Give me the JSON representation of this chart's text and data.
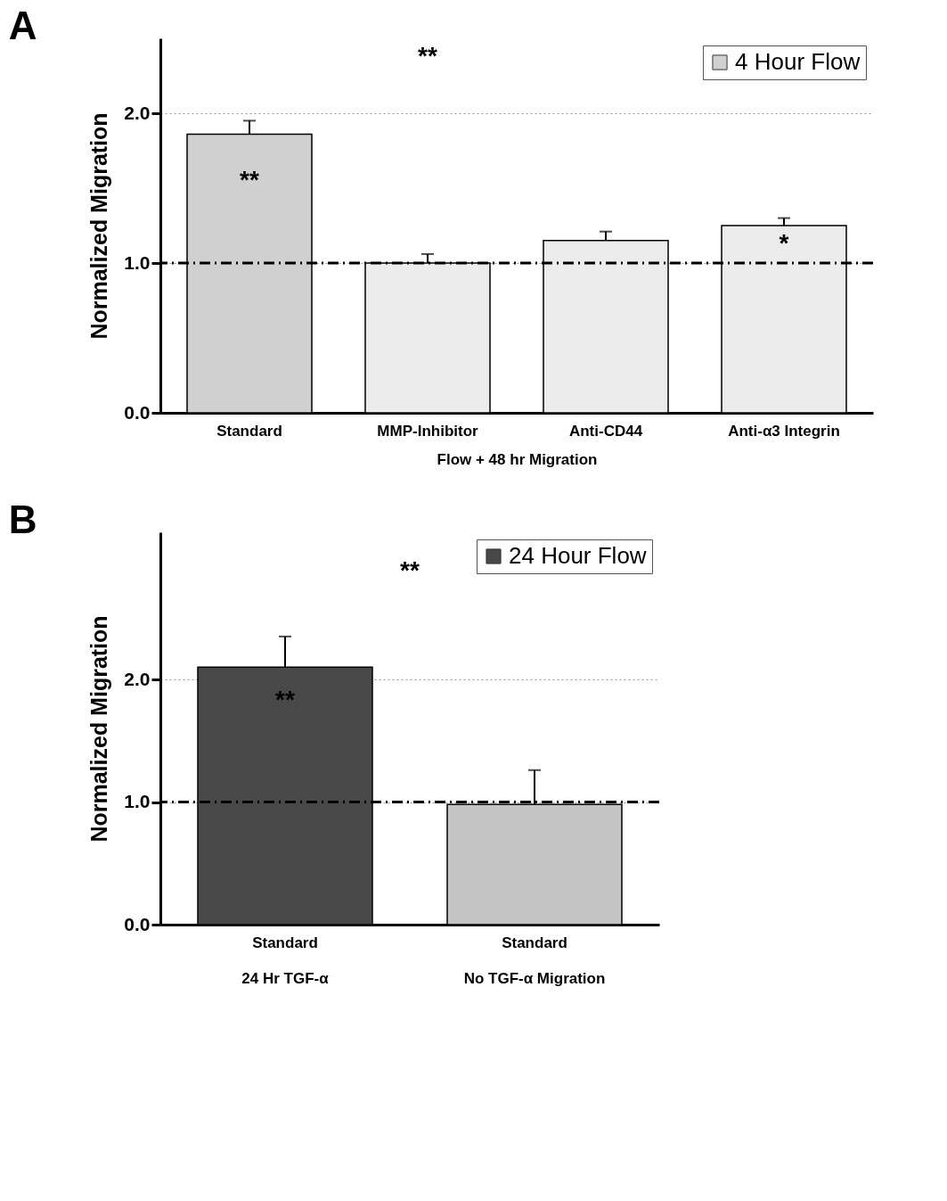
{
  "chart_data": [
    {
      "type": "bar",
      "title": "A",
      "xlabel": "Flow + 48 hr Migration",
      "ylabel": "Normalized Migration",
      "categories": [
        "Standard",
        "MMP-Inhibitor",
        "Anti-CD44",
        "Anti-α3 Integrin"
      ],
      "series": [
        {
          "name": "4 Hour Flow",
          "color": "#d0d0d0",
          "colors": [
            "#d0d0d0",
            "#ececec",
            "#ececec",
            "#ececec"
          ],
          "values": [
            1.86,
            1.0,
            1.15,
            1.25
          ],
          "errors": [
            0.09,
            0.06,
            0.06,
            0.05
          ]
        }
      ],
      "ylim": [
        0,
        2.5
      ],
      "yticks": [
        {
          "value": 0,
          "label": "0.0"
        },
        {
          "value": 1,
          "label": "1.0"
        },
        {
          "value": 2,
          "label": "2.0"
        }
      ],
      "grid": "y",
      "legend": "top right",
      "ref_lines": [
        {
          "axis": "y",
          "value": 1.0,
          "line_style": "dashed"
        }
      ],
      "annotations": [
        "**",
        "*",
        "**"
      ]
    },
    {
      "type": "bar",
      "title": "B",
      "ylabel": "Normalized Migration",
      "categories": [
        "Standard\n24 Hr TGF-α",
        "Standard\nNo TGF-α Migration"
      ],
      "series": [
        {
          "name": "24 Hour Flow",
          "color": "#484848",
          "colors": [
            "#484848",
            "#c4c4c4"
          ],
          "values": [
            2.1,
            0.98
          ],
          "errors": [
            0.25,
            0.28
          ]
        }
      ],
      "ylim": [
        0,
        3.2
      ],
      "yticks": [
        {
          "value": 0,
          "label": "0.0"
        },
        {
          "value": 1,
          "label": "1.0"
        },
        {
          "value": 2,
          "label": "2.0"
        }
      ],
      "grid": "y",
      "legend": "top right",
      "ref_lines": [
        {
          "axis": "y",
          "value": 1.0,
          "line_style": "dashed"
        }
      ],
      "annotations": [
        "**",
        "**"
      ]
    }
  ]
}
